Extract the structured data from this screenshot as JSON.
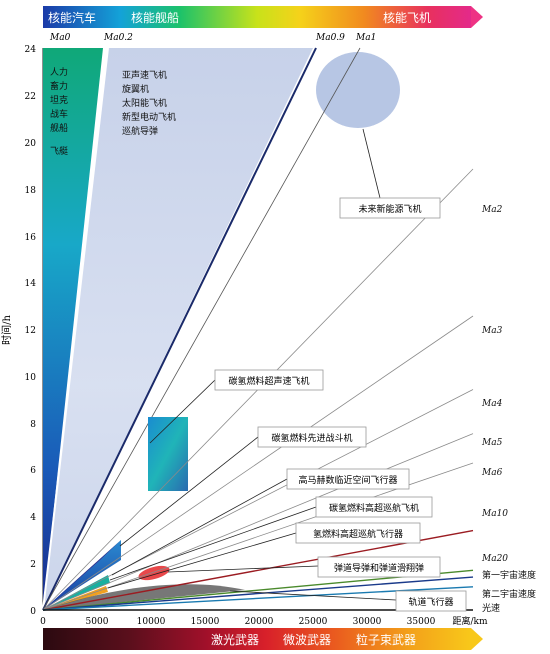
{
  "top_band": {
    "labels": [
      "核能汽车",
      "核能舰船",
      "核能飞机"
    ],
    "color_start": "#1b3aa8",
    "color_end": "#e42a8a"
  },
  "bottom_band": {
    "labels": [
      "激光武器",
      "微波武器",
      "粒子束武器"
    ],
    "color_start": "#2b0a10",
    "color_end": "#f8c81a"
  },
  "chart_data": {
    "type": "line",
    "xlabel": "距离/km",
    "ylabel": "时间/h",
    "xlim": [
      0,
      40000
    ],
    "ylim": [
      0,
      24
    ],
    "x_ticks": [
      "0",
      "5000",
      "10000",
      "15000",
      "20000",
      "25000",
      "30000",
      "35000"
    ],
    "y_ticks": [
      "0",
      "2",
      "4",
      "6",
      "8",
      "10",
      "12",
      "14",
      "16",
      "18",
      "20",
      "22",
      "24"
    ],
    "top_mach_labels": [
      "Ma0",
      "Ma0.2",
      "Ma0.9",
      "Ma1"
    ],
    "right_labels": [
      "Ma2",
      "Ma3",
      "Ma4",
      "Ma5",
      "Ma6",
      "Ma10",
      "Ma20",
      "第一宇宙速度",
      "第二宇宙速度",
      "光速"
    ],
    "region_texts": {
      "left_column": [
        "人力",
        "畜力",
        "坦克",
        "战车",
        "舰船",
        "",
        "飞艇"
      ],
      "subsonic": [
        "亚声速飞机",
        "旋翼机",
        "太阳能飞机",
        "新型电动飞机",
        "巡航导弹"
      ]
    },
    "annotations": [
      "未来新能源飞机",
      "碳氢燃料超声速飞机",
      "碳氢燃料先进战斗机",
      "高马赫数临近空间飞行器",
      "碳氢燃料高超巡航飞机",
      "氢燃料高超巡航飞行器",
      "弹道导弹和弹道滑翔弹",
      "轨道飞行器"
    ],
    "series": [
      {
        "name": "Ma2",
        "slope_km_per_h": 2124,
        "color": "#8a8a8a"
      },
      {
        "name": "Ma3",
        "slope_km_per_h": 3186,
        "color": "#8a8a8a"
      },
      {
        "name": "Ma4",
        "slope_km_per_h": 4248,
        "color": "#8a8a8a"
      },
      {
        "name": "Ma5",
        "slope_km_per_h": 5310,
        "color": "#8a8a8a"
      },
      {
        "name": "Ma6",
        "slope_km_per_h": 6372,
        "color": "#8a8a8a"
      },
      {
        "name": "Ma10",
        "slope_km_per_h": 11800,
        "color": "#9b1c22"
      },
      {
        "name": "Ma20",
        "slope_km_per_h": 23600,
        "color": "#4a8a2c"
      },
      {
        "name": "第一宇宙速度",
        "slope_km_per_h": 28440,
        "color": "#1a3a8a"
      },
      {
        "name": "第二宇宙速度",
        "slope_km_per_h": 40320,
        "color": "#1a7ab0"
      },
      {
        "name": "光速",
        "slope_km_per_h": 1079000000,
        "color": "#111111"
      }
    ]
  }
}
